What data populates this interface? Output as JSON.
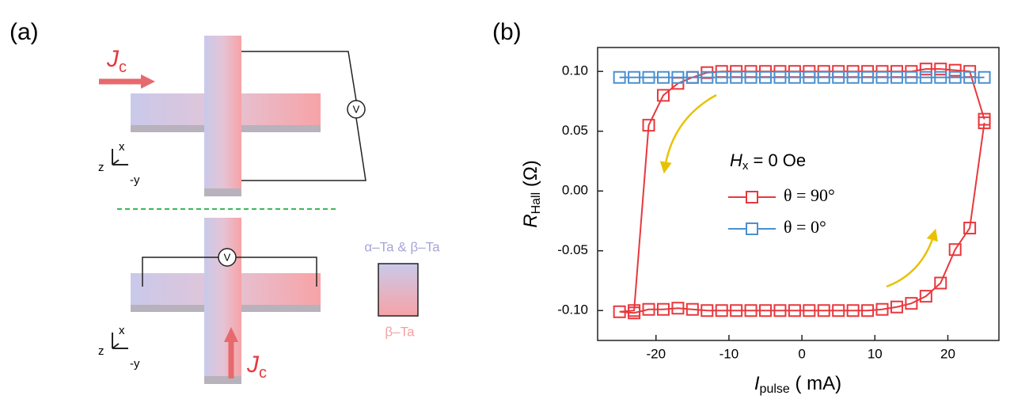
{
  "panel_a": {
    "label": "(a)",
    "top": {
      "current": {
        "main": "J",
        "sub": "c"
      },
      "voltmeter": "V",
      "axes": {
        "x": "x",
        "z": "z",
        "y": "-y"
      }
    },
    "bottom": {
      "current": {
        "main": "J",
        "sub": "c"
      },
      "voltmeter": "V",
      "axes": {
        "x": "x",
        "z": "z",
        "y": "-y"
      }
    },
    "material_top": "α–Ta & β–Ta",
    "material_bottom": "β–Ta"
  },
  "chart_data": {
    "type": "line",
    "panel_label": "(b)",
    "y_label": {
      "main": "R",
      "sub": "Hall",
      "unit": " (Ω)"
    },
    "x_label": {
      "main": "I",
      "sub": "pulse",
      "unit": " ( mA)"
    },
    "legend_title": {
      "main": "H",
      "sub": "x",
      "rest": " = 0 Oe"
    },
    "xlim": [
      -28,
      27
    ],
    "ylim": [
      -0.125,
      0.12
    ],
    "xticks": [
      -20,
      -10,
      0,
      10,
      20
    ],
    "yticks": [
      {
        "value": -0.1,
        "label": "-0.10"
      },
      {
        "value": -0.05,
        "label": "-0.05"
      },
      {
        "value": 0,
        "label": "0.00"
      },
      {
        "value": 0.05,
        "label": "0.05"
      },
      {
        "value": 0.1,
        "label": "0.10"
      }
    ],
    "series": [
      {
        "name": "θ = 90°",
        "color": "#e8383d",
        "x": [
          25,
          23,
          21,
          19,
          17,
          15,
          13,
          11,
          9,
          7,
          5,
          3,
          1,
          -1,
          -3,
          -5,
          -7,
          -9,
          -11,
          -13,
          -15,
          -17,
          -19,
          -21,
          -23,
          -25,
          -23,
          -21,
          -19,
          -17,
          -15,
          -13,
          -11,
          -9,
          -7,
          -5,
          -3,
          -1,
          1,
          3,
          5,
          7,
          9,
          11,
          13,
          15,
          17,
          19,
          21,
          23,
          25
        ],
        "values": [
          0.06,
          0.1,
          0.101,
          0.102,
          0.102,
          0.1,
          0.1,
          0.1,
          0.1,
          0.1,
          0.1,
          0.1,
          0.1,
          0.1,
          0.1,
          0.1,
          0.1,
          0.1,
          0.1,
          0.099,
          0.095,
          0.09,
          0.08,
          0.055,
          -0.1,
          -0.101,
          -0.102,
          -0.099,
          -0.099,
          -0.098,
          -0.099,
          -0.1,
          -0.1,
          -0.1,
          -0.1,
          -0.1,
          -0.1,
          -0.1,
          -0.1,
          -0.1,
          -0.1,
          -0.1,
          -0.1,
          -0.099,
          -0.097,
          -0.094,
          -0.088,
          -0.077,
          -0.049,
          -0.031,
          0.057
        ]
      },
      {
        "name": "θ = 0°",
        "color": "#4a90d0",
        "x": [
          -25,
          -23,
          -21,
          -19,
          -17,
          -15,
          -13,
          -11,
          -9,
          -7,
          -5,
          -3,
          -1,
          1,
          3,
          5,
          7,
          9,
          11,
          13,
          15,
          17,
          19,
          21,
          23,
          25
        ],
        "values": [
          0.095,
          0.095,
          0.095,
          0.095,
          0.095,
          0.095,
          0.095,
          0.095,
          0.095,
          0.095,
          0.095,
          0.095,
          0.095,
          0.095,
          0.095,
          0.095,
          0.095,
          0.095,
          0.095,
          0.095,
          0.095,
          0.095,
          0.095,
          0.095,
          0.095,
          0.095
        ]
      }
    ]
  }
}
